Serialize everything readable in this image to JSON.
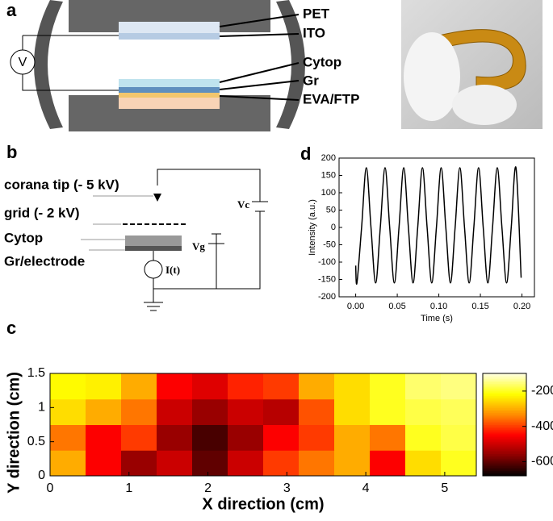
{
  "panels": {
    "a": {
      "letter": "a",
      "labels": [
        "PET",
        "ITO",
        "Cytop",
        "Gr",
        "EVA/FTP"
      ],
      "meter": "V"
    },
    "b": {
      "letter": "b",
      "labels": [
        "corana tip (- 5 kV)",
        "grid (- 2 kV)",
        "Cytop",
        "Gr/electrode"
      ],
      "vc": "Vc",
      "vg": "Vg",
      "current": "I(t)"
    },
    "c": {
      "letter": "c"
    },
    "d": {
      "letter": "d"
    }
  },
  "chart_data": [
    {
      "type": "line",
      "x_label": "Time (s)",
      "y_label": "Intensity (a.u.)",
      "color": "#000000",
      "x": [
        0,
        0.0015,
        0.0071,
        0.0128,
        0.0184,
        0.024,
        0.0296,
        0.0353,
        0.0409,
        0.0465,
        0.0521,
        0.0578,
        0.0634,
        0.069,
        0.0746,
        0.0803,
        0.0859,
        0.0915,
        0.0971,
        0.1028,
        0.1084,
        0.114,
        0.1196,
        0.1253,
        0.1309,
        0.1365,
        0.1421,
        0.1478,
        0.1534,
        0.159,
        0.1646,
        0.1703,
        0.1759,
        0.1815,
        0.1871,
        0.1928,
        0.199
      ],
      "values": [
        -110,
        -160,
        0,
        172,
        0,
        -160,
        0,
        172,
        0,
        -160,
        0,
        172,
        0,
        -160,
        0,
        172,
        0,
        -160,
        0,
        172,
        0,
        -160,
        0,
        172,
        0,
        -160,
        0,
        172,
        0,
        -160,
        0,
        172,
        0,
        -160,
        0,
        172,
        -145
      ],
      "xlim": [
        -0.02,
        0.215
      ],
      "ylim": [
        -200,
        200
      ],
      "xticks": [
        {
          "value": 0,
          "label": "0.00"
        },
        {
          "value": 0.05,
          "label": "0.05"
        },
        {
          "value": 0.1,
          "label": "0.10"
        },
        {
          "value": 0.15,
          "label": "0.15"
        },
        {
          "value": 0.2,
          "label": "0.20"
        }
      ],
      "yticks": [
        -200,
        -150,
        -100,
        -50,
        0,
        50,
        100,
        150,
        200
      ]
    },
    {
      "type": "heatmap",
      "x_label": "X direction (cm)",
      "y_label": "Y direction (cm)",
      "x_edges": [
        0,
        0.45,
        0.9,
        1.35,
        1.8,
        2.25,
        2.7,
        3.15,
        3.6,
        4.05,
        4.5,
        4.95,
        5.4
      ],
      "y_edges": [
        0,
        0.375,
        0.75,
        1.125,
        1.5
      ],
      "values": [
        [
          -300,
          -450,
          -550,
          -500,
          -600,
          -500,
          -400,
          -350,
          -300,
          -450,
          -250,
          -200
        ],
        [
          -350,
          -450,
          -400,
          -550,
          -620,
          -550,
          -450,
          -400,
          -300,
          -350,
          -200,
          -180
        ],
        [
          -250,
          -300,
          -350,
          -500,
          -550,
          -500,
          -520,
          -380,
          -250,
          -200,
          -180,
          -170
        ],
        [
          -220,
          -230,
          -300,
          -450,
          -480,
          -420,
          -400,
          -300,
          -250,
          -200,
          -160,
          -150
        ]
      ],
      "xlim": [
        0,
        5.4
      ],
      "ylim": [
        0,
        1.5
      ],
      "xticks": [
        0,
        1,
        2,
        3,
        4,
        5
      ],
      "yticks": [
        0,
        0.5,
        1,
        1.5
      ],
      "clim": [
        -680,
        -100
      ],
      "cticks": [
        -200,
        -400,
        -600
      ],
      "colormap": [
        "#000000",
        "#8b0000",
        "#ff0000",
        "#ff8c00",
        "#ffff00",
        "#ffffe0"
      ]
    }
  ]
}
